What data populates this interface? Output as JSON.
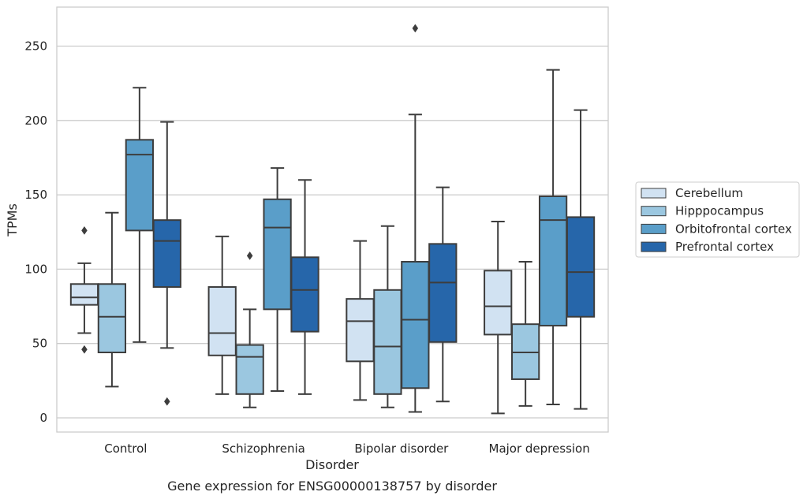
{
  "chart_data": {
    "type": "box",
    "caption": "Gene expression for ENSG00000138757 by disorder",
    "xlabel": "Disorder",
    "ylabel": "TPMs",
    "categories": [
      "Control",
      "Schizophrenia",
      "Bipolar disorder",
      "Major depression"
    ],
    "ylim": [
      -10,
      276
    ],
    "yticks": [
      0,
      50,
      100,
      150,
      200,
      250
    ],
    "grid": true,
    "legend_position": "right",
    "series": [
      {
        "name": "Cerebellum",
        "color": "#d1e2f2",
        "boxes": [
          {
            "whislo": 57,
            "q1": 76,
            "med": 81,
            "q3": 90,
            "whishi": 104,
            "fliers": [
              126,
              46
            ]
          },
          {
            "whislo": 16,
            "q1": 42,
            "med": 57,
            "q3": 88,
            "whishi": 122,
            "fliers": []
          },
          {
            "whislo": 12,
            "q1": 38,
            "med": 65,
            "q3": 80,
            "whishi": 119,
            "fliers": []
          },
          {
            "whislo": 3,
            "q1": 56,
            "med": 75,
            "q3": 99,
            "whishi": 132,
            "fliers": []
          }
        ]
      },
      {
        "name": "Hipppocampus",
        "color": "#9bc7e0",
        "boxes": [
          {
            "whislo": 21,
            "q1": 44,
            "med": 68,
            "q3": 90,
            "whishi": 138,
            "fliers": []
          },
          {
            "whislo": 7,
            "q1": 16,
            "med": 41,
            "q3": 49,
            "whishi": 73,
            "fliers": [
              109
            ]
          },
          {
            "whislo": 7,
            "q1": 16,
            "med": 48,
            "q3": 86,
            "whishi": 129,
            "fliers": []
          },
          {
            "whislo": 8,
            "q1": 26,
            "med": 44,
            "q3": 63,
            "whishi": 105,
            "fliers": []
          }
        ]
      },
      {
        "name": "Orbitofrontal cortex",
        "color": "#5a9ec9",
        "boxes": [
          {
            "whislo": 51,
            "q1": 126,
            "med": 177,
            "q3": 187,
            "whishi": 222,
            "fliers": []
          },
          {
            "whislo": 18,
            "q1": 73,
            "med": 128,
            "q3": 147,
            "whishi": 168,
            "fliers": []
          },
          {
            "whislo": 4,
            "q1": 20,
            "med": 66,
            "q3": 105,
            "whishi": 204,
            "fliers": [
              262
            ]
          },
          {
            "whislo": 9,
            "q1": 62,
            "med": 133,
            "q3": 149,
            "whishi": 234,
            "fliers": []
          }
        ]
      },
      {
        "name": "Prefrontal cortex",
        "color": "#2666aa",
        "boxes": [
          {
            "whislo": 47,
            "q1": 88,
            "med": 119,
            "q3": 133,
            "whishi": 199,
            "fliers": [
              11
            ]
          },
          {
            "whislo": 16,
            "q1": 58,
            "med": 86,
            "q3": 108,
            "whishi": 160,
            "fliers": []
          },
          {
            "whislo": 11,
            "q1": 51,
            "med": 91,
            "q3": 117,
            "whishi": 155,
            "fliers": []
          },
          {
            "whislo": 6,
            "q1": 68,
            "med": 98,
            "q3": 135,
            "whishi": 207,
            "fliers": []
          }
        ]
      }
    ]
  }
}
